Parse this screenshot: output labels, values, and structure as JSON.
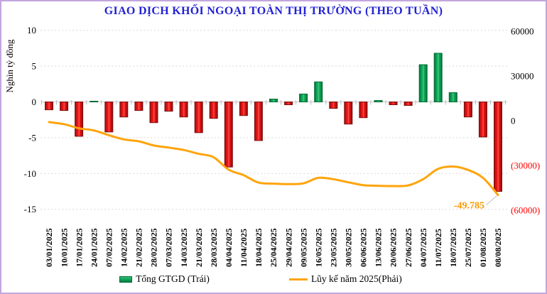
{
  "chart_data": {
    "type": "combo_bar_line",
    "title": "GIAO DỊCH KHỐI NGOẠI TOÀN THỊ TRƯỜNG (THEO TUẦN)",
    "title_color": "#2222D4",
    "categories": [
      "03/01/2025",
      "10/01/2025",
      "17/01/2025",
      "24/01/2025",
      "07/02/2025",
      "14/02/2025",
      "21/02/2025",
      "28/02/2025",
      "07/03/2025",
      "14/03/2025",
      "21/03/2025",
      "28/03/2025",
      "04/04/2025",
      "11/04/2025",
      "18/04/2025",
      "25/04/2025",
      "29/04/2025",
      "09/05/2025",
      "16/05/2025",
      "23/05/2025",
      "30/05/2025",
      "06/06/2025",
      "13/06/2025",
      "20/06/2025",
      "27/06/2025",
      "04/07/2025",
      "11/07/2025",
      "18/07/2025",
      "25/07/2025",
      "01/08/2025",
      "08/08/2025"
    ],
    "series": [
      {
        "name": "Tổng GTGD (Trái)",
        "type": "bar",
        "axis": "left",
        "unit": "nghìn tỷ đồng",
        "color_positive": "#00A155",
        "color_negative": "#E01414",
        "values": [
          -1.1,
          -1.2,
          -4.8,
          0.1,
          -4.2,
          -2.1,
          -1.2,
          -2.9,
          -1.3,
          -2.1,
          -4.3,
          -2.3,
          -9.1,
          -1.9,
          -5.4,
          0.4,
          -0.4,
          1.1,
          2.8,
          -0.9,
          -3.1,
          -2.2,
          0.2,
          -0.4,
          -0.5,
          5.2,
          6.8,
          1.3,
          -2.1,
          -4.9,
          -12.5
        ]
      },
      {
        "name": "Lũy kế năm 2025(Phải)",
        "type": "line",
        "axis": "right",
        "unit": "tỷ đồng",
        "color": "#FFA40A",
        "values": [
          -900,
          -2300,
          -5100,
          -6500,
          -9700,
          -12500,
          -13800,
          -16600,
          -18000,
          -19600,
          -22200,
          -24500,
          -32800,
          -36500,
          -41500,
          -42200,
          -42500,
          -42000,
          -38300,
          -39200,
          -41300,
          -43200,
          -43600,
          -43800,
          -43400,
          -39200,
          -32300,
          -30700,
          -33000,
          -38300,
          -49785
        ]
      }
    ],
    "left_axis": {
      "label": "Nghìn tỷ đồng",
      "ticks": [
        10,
        5,
        0,
        -5,
        -10,
        -15
      ],
      "range": [
        -15,
        10
      ]
    },
    "right_axis": {
      "ticks": [
        60000,
        30000,
        0,
        -30000,
        -60000
      ],
      "range": [
        -60000,
        60000
      ],
      "negative_format": "parentheses",
      "negative_color": "#FF0000"
    },
    "annotation": {
      "text": "-49.785",
      "value": -49785,
      "series": "Lũy kế năm 2025(Phải)",
      "color": "#FF9900"
    },
    "grid": "horizontal-dashed",
    "legend_position": "bottom"
  }
}
